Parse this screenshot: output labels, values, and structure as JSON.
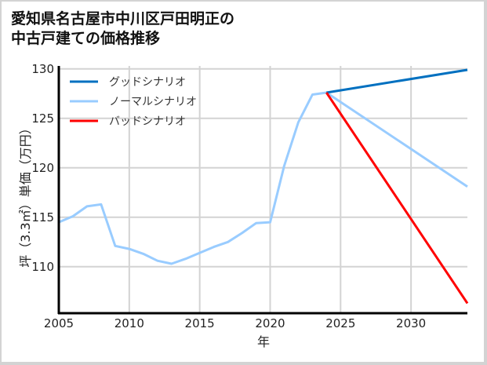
{
  "title_lines": [
    "愛知県名古屋市中川区戸田明正の",
    "中古戸建ての価格推移"
  ],
  "chart_data": {
    "type": "line",
    "title": "愛知県名古屋市中川区戸田明正の中古戸建ての価格推移",
    "xlabel": "年",
    "ylabel": "坪（3.3㎡）単価（万円）",
    "xlim": [
      2005,
      2034
    ],
    "ylim": [
      105.3,
      130.3
    ],
    "x_ticks": [
      2005,
      2010,
      2015,
      2020,
      2025,
      2030
    ],
    "y_ticks": [
      110,
      115,
      120,
      125,
      130
    ],
    "grid": true,
    "legend_position": "upper left",
    "series": [
      {
        "name": "グッドシナリオ",
        "color": "#0070C0",
        "x": [
          2024,
          2034
        ],
        "values": [
          127.6,
          129.9
        ]
      },
      {
        "name": "ノーマルシナリオ",
        "color": "#99CCFF",
        "x": [
          2005,
          2006,
          2007,
          2008,
          2009,
          2010,
          2011,
          2012,
          2013,
          2014,
          2015,
          2016,
          2017,
          2018,
          2019,
          2020,
          2021,
          2022,
          2023,
          2024,
          2034
        ],
        "values": [
          114.5,
          115.1,
          116.1,
          116.3,
          112.1,
          111.8,
          111.3,
          110.6,
          110.3,
          110.8,
          111.4,
          112.0,
          112.5,
          113.4,
          114.4,
          114.5,
          120.2,
          124.6,
          127.4,
          127.6,
          118.1
        ]
      },
      {
        "name": "バッドシナリオ",
        "color": "#FF0000",
        "x": [
          2024,
          2034
        ],
        "values": [
          127.6,
          106.3
        ]
      }
    ]
  }
}
